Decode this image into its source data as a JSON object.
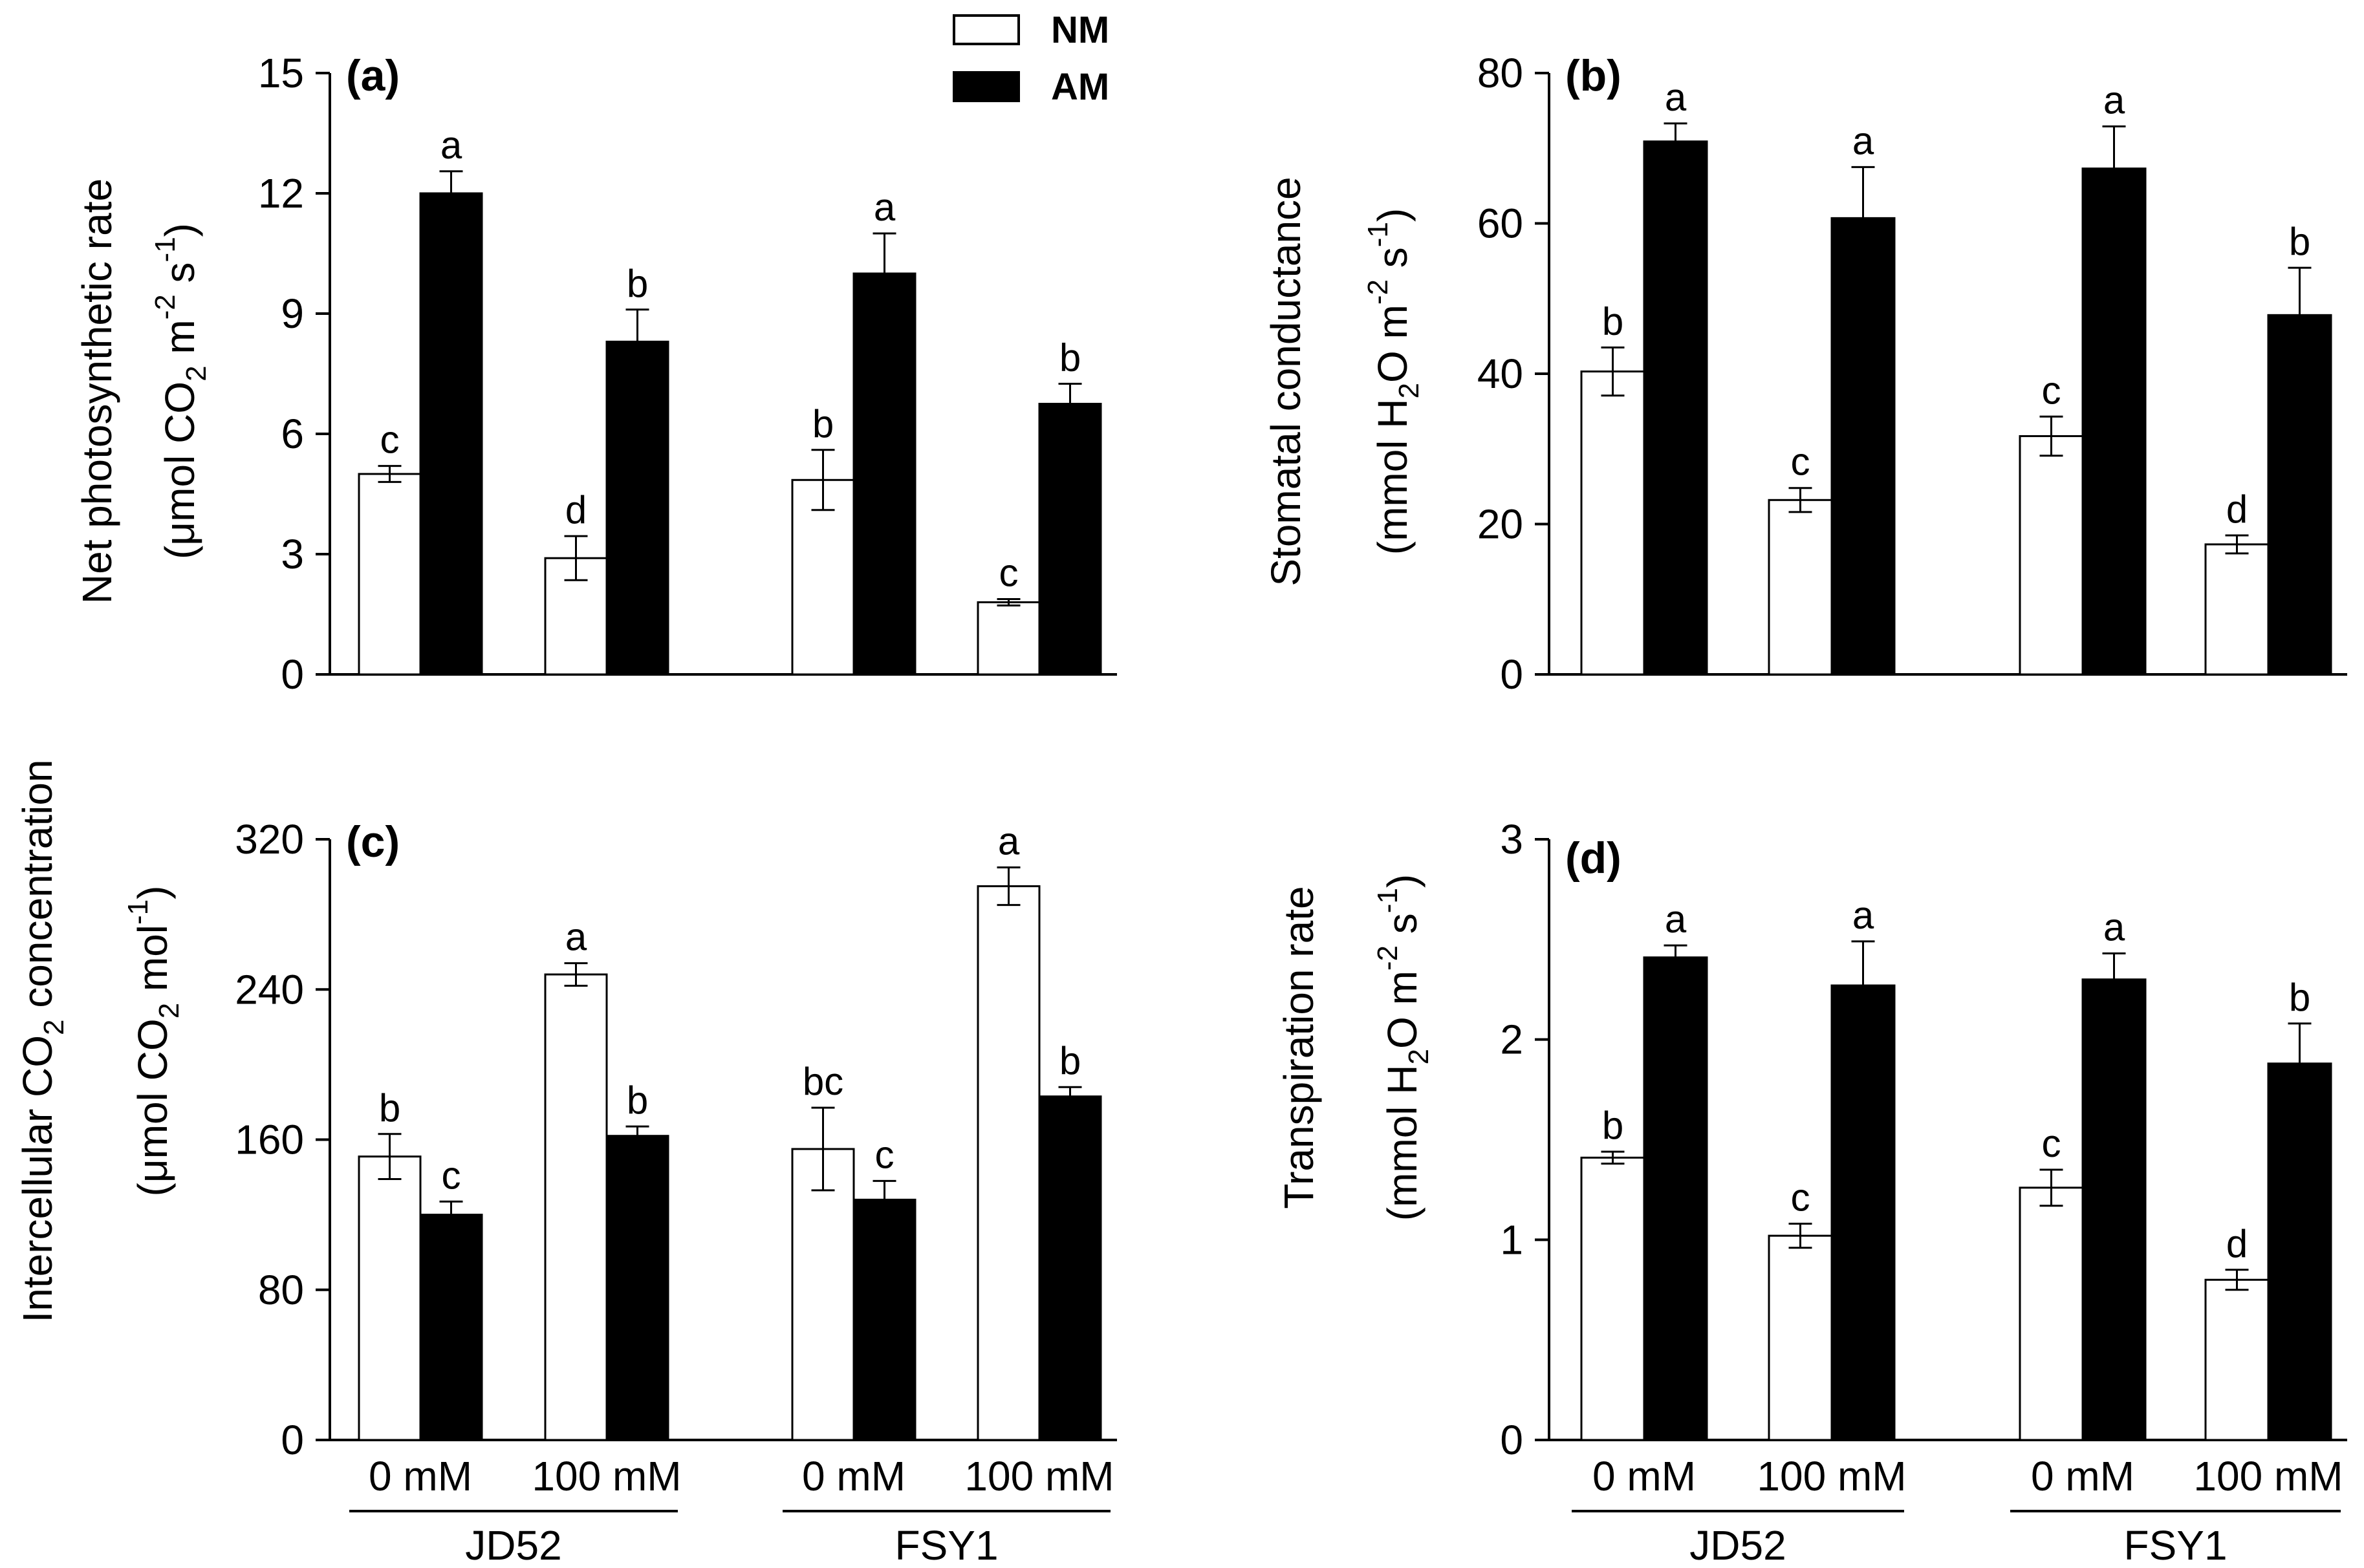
{
  "legend": [
    {
      "name": "NM",
      "fill": "#ffffff"
    },
    {
      "name": "AM",
      "fill": "#000000"
    }
  ],
  "x_groups": [
    {
      "cultivar": "JD52",
      "treatments": [
        "0 mM",
        "100 mM"
      ]
    },
    {
      "cultivar": "FSY1",
      "treatments": [
        "0 mM",
        "100 mM"
      ]
    }
  ],
  "chart_data": [
    {
      "panel": "(a)",
      "type": "bar",
      "ylabel": {
        "line1": "Net photosynthetic rate",
        "line2": "(μmol CO2 m-2 s-1)"
      },
      "ylim": [
        0,
        15
      ],
      "yticks": [
        0,
        3,
        6,
        9,
        12,
        15
      ],
      "categories": [
        "JD52 0 mM",
        "JD52 100 mM",
        "FSY1 0 mM",
        "FSY1 100 mM"
      ],
      "series": [
        {
          "name": "NM",
          "values": [
            5.0,
            2.9,
            4.85,
            1.8
          ],
          "errors": [
            0.2,
            0.55,
            0.75,
            0.08
          ],
          "labels": [
            "c",
            "d",
            "b",
            "c"
          ]
        },
        {
          "name": "AM",
          "values": [
            12.0,
            8.3,
            10.0,
            6.75
          ],
          "errors": [
            0.55,
            0.8,
            1.0,
            0.5
          ],
          "labels": [
            "a",
            "b",
            "a",
            "b"
          ]
        }
      ]
    },
    {
      "panel": "(b)",
      "type": "bar",
      "ylabel": {
        "line1": "Stomatal conductance",
        "line2": "(mmol H2O m-2 s-1)"
      },
      "ylim": [
        0,
        80
      ],
      "yticks": [
        0,
        20,
        40,
        60,
        80
      ],
      "categories": [
        "JD52 0 mM",
        "JD52 100 mM",
        "FSY1 0 mM",
        "FSY1 100 mM"
      ],
      "series": [
        {
          "name": "NM",
          "values": [
            40.3,
            23.2,
            31.7,
            17.3
          ],
          "errors": [
            3.2,
            1.6,
            2.6,
            1.2
          ],
          "labels": [
            "b",
            "c",
            "c",
            "d"
          ]
        },
        {
          "name": "AM",
          "values": [
            70.9,
            60.7,
            67.3,
            47.8
          ],
          "errors": [
            2.4,
            6.8,
            5.6,
            6.3
          ],
          "labels": [
            "a",
            "a",
            "a",
            "b"
          ]
        }
      ]
    },
    {
      "panel": "(c)",
      "type": "bar",
      "ylabel": {
        "line1": "Intercellular CO2 concentration",
        "line2": "(μmol CO2 mol-1)"
      },
      "ylim": [
        0,
        320
      ],
      "yticks": [
        0,
        80,
        160,
        240,
        320
      ],
      "categories": [
        "JD52 0 mM",
        "JD52 100 mM",
        "FSY1 0 mM",
        "FSY1 100 mM"
      ],
      "series": [
        {
          "name": "NM",
          "values": [
            151,
            248,
            155,
            295
          ],
          "errors": [
            12,
            6,
            22,
            10
          ],
          "labels": [
            "b",
            "a",
            "bc",
            "a"
          ]
        },
        {
          "name": "AM",
          "values": [
            120,
            162,
            128,
            183
          ],
          "errors": [
            7,
            5,
            10,
            5
          ],
          "labels": [
            "c",
            "b",
            "c",
            "b"
          ]
        }
      ]
    },
    {
      "panel": "(d)",
      "type": "bar",
      "ylabel": {
        "line1": "Transpiration rate",
        "line2": "(mmol H2O m-2 s-1)"
      },
      "ylim": [
        0,
        3
      ],
      "yticks": [
        0,
        1,
        2,
        3
      ],
      "categories": [
        "JD52 0 mM",
        "JD52 100 mM",
        "FSY1 0 mM",
        "FSY1 100 mM"
      ],
      "series": [
        {
          "name": "NM",
          "values": [
            1.41,
            1.02,
            1.26,
            0.8
          ],
          "errors": [
            0.03,
            0.06,
            0.09,
            0.05
          ],
          "labels": [
            "b",
            "c",
            "c",
            "d"
          ]
        },
        {
          "name": "AM",
          "values": [
            2.41,
            2.27,
            2.3,
            1.88
          ],
          "errors": [
            0.06,
            0.22,
            0.13,
            0.2
          ],
          "labels": [
            "a",
            "a",
            "a",
            "b"
          ]
        }
      ]
    }
  ]
}
